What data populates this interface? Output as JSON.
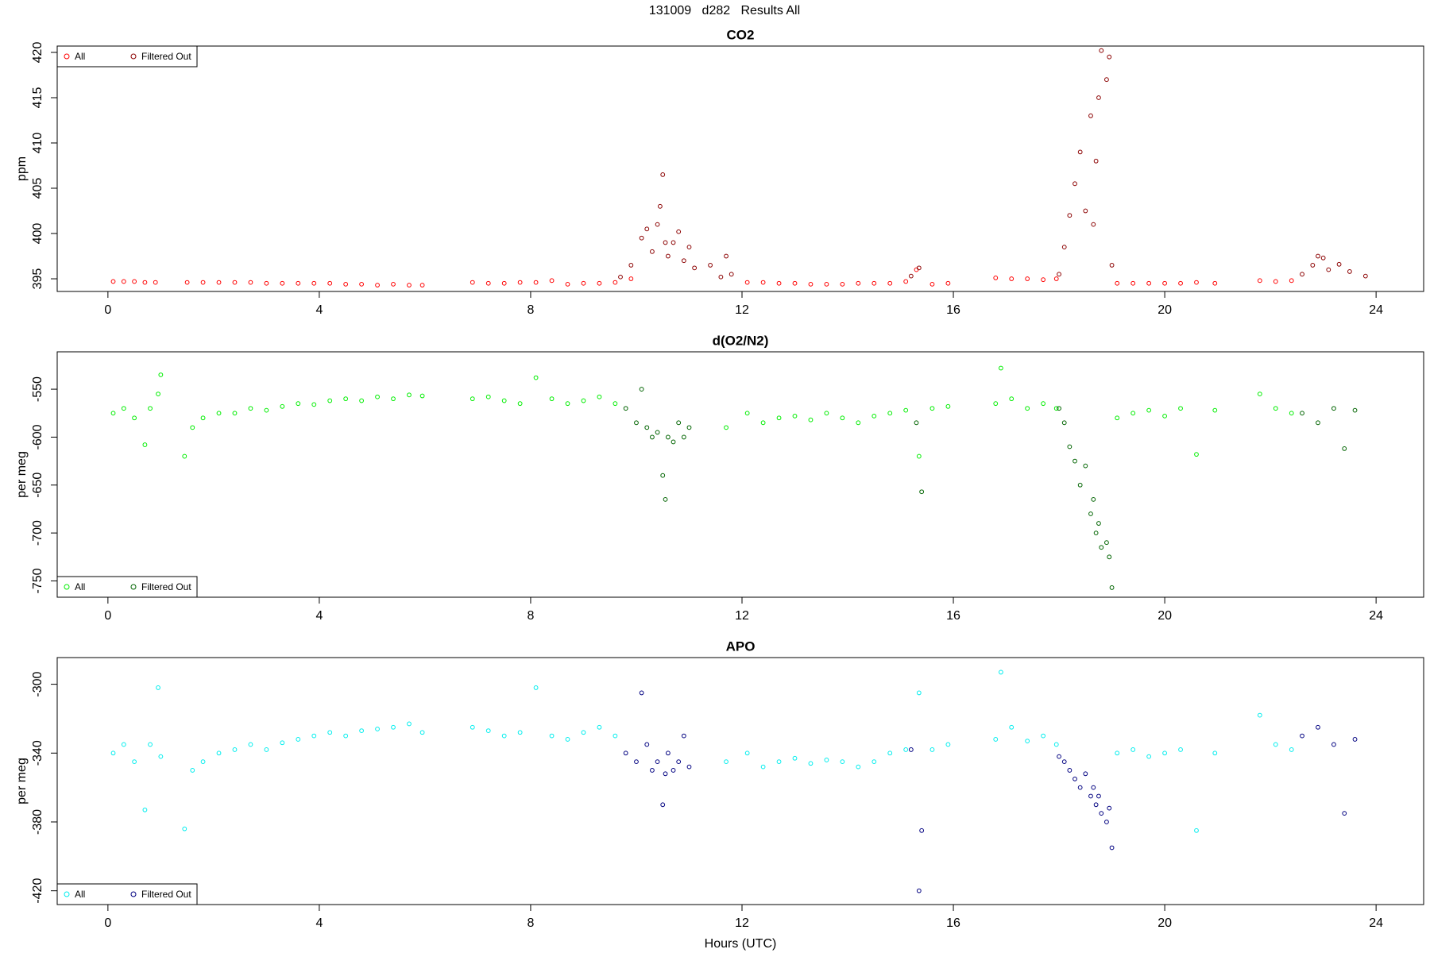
{
  "title": "131009   d282   Results All",
  "chart_data": [
    {
      "type": "scatter",
      "title": "CO2",
      "y_label": "ppm",
      "legend": "top-left",
      "xlim": [
        -0.96,
        24.9
      ],
      "xticks": [
        0,
        4,
        8,
        12,
        16,
        20,
        24
      ],
      "ylim": [
        393.6,
        420.7
      ],
      "yticks": [
        395,
        400,
        405,
        410,
        415,
        420
      ],
      "series": [
        {
          "name": "All",
          "color": "#ff0000",
          "x": [
            0.1,
            0.3,
            0.5,
            0.7,
            0.9,
            1.5,
            1.8,
            2.1,
            2.4,
            2.7,
            3.0,
            3.3,
            3.6,
            3.9,
            4.2,
            4.5,
            4.8,
            5.1,
            5.4,
            5.7,
            5.95,
            6.9,
            7.2,
            7.5,
            7.8,
            8.1,
            8.4,
            8.7,
            9.0,
            9.3,
            9.6,
            9.9,
            12.1,
            12.4,
            12.7,
            13.0,
            13.3,
            13.6,
            13.9,
            14.2,
            14.5,
            14.8,
            15.1,
            15.3,
            15.6,
            15.9,
            16.8,
            17.1,
            17.4,
            17.7,
            17.95,
            19.1,
            19.4,
            19.7,
            20.0,
            20.3,
            20.6,
            20.95,
            21.8,
            22.1,
            22.4
          ],
          "values": [
            394.7,
            394.7,
            394.7,
            394.6,
            394.6,
            394.6,
            394.6,
            394.6,
            394.6,
            394.6,
            394.5,
            394.5,
            394.5,
            394.5,
            394.5,
            394.4,
            394.4,
            394.3,
            394.4,
            394.3,
            394.3,
            394.6,
            394.5,
            394.5,
            394.6,
            394.6,
            394.8,
            394.4,
            394.5,
            394.5,
            394.6,
            395.0,
            394.6,
            394.6,
            394.5,
            394.5,
            394.4,
            394.4,
            394.4,
            394.5,
            394.5,
            394.5,
            394.7,
            396.0,
            394.4,
            394.5,
            395.1,
            395.0,
            395.0,
            394.9,
            395.0,
            394.5,
            394.5,
            394.5,
            394.5,
            394.5,
            394.6,
            394.5,
            394.8,
            394.7,
            394.8
          ]
        },
        {
          "name": "Filtered Out",
          "color": "#8b0000",
          "x": [
            9.7,
            9.9,
            10.1,
            10.2,
            10.3,
            10.4,
            10.45,
            10.5,
            10.55,
            10.6,
            10.7,
            10.8,
            10.9,
            11.0,
            11.1,
            11.4,
            11.6,
            11.7,
            11.8,
            15.2,
            15.35,
            18.0,
            18.1,
            18.2,
            18.3,
            18.4,
            18.5,
            18.6,
            18.65,
            18.7,
            18.75,
            18.8,
            18.9,
            18.95,
            19.0,
            22.6,
            22.8,
            22.9,
            23.0,
            23.1,
            23.3,
            23.5,
            23.8
          ],
          "values": [
            395.2,
            396.5,
            399.5,
            400.5,
            398,
            401,
            403,
            406.5,
            399,
            397.5,
            399,
            400.2,
            397,
            398.5,
            396.2,
            396.5,
            395.2,
            397.5,
            395.5,
            395.3,
            396.2,
            395.5,
            398.5,
            402,
            405.5,
            409,
            402.5,
            413,
            401,
            408,
            415,
            420.2,
            417,
            419.5,
            396.5,
            395.5,
            396.5,
            397.5,
            397.3,
            396.0,
            396.6,
            395.8,
            395.3
          ]
        }
      ]
    },
    {
      "type": "scatter",
      "title": "d(O2/N2)",
      "y_label": "per meg",
      "legend": "bottom-left",
      "xlim": [
        -0.96,
        24.9
      ],
      "xticks": [
        0,
        4,
        8,
        12,
        16,
        20,
        24
      ],
      "ylim": [
        -767,
        -511
      ],
      "yticks": [
        -550,
        -600,
        -650,
        -700,
        -750
      ],
      "series": [
        {
          "name": "All",
          "color": "#00ee00",
          "x": [
            0.1,
            0.3,
            0.5,
            0.7,
            0.8,
            0.95,
            1.0,
            1.45,
            1.6,
            1.8,
            2.1,
            2.4,
            2.7,
            3.0,
            3.3,
            3.6,
            3.9,
            4.2,
            4.5,
            4.8,
            5.1,
            5.4,
            5.7,
            5.95,
            6.9,
            7.2,
            7.5,
            7.8,
            8.1,
            8.4,
            8.7,
            9.0,
            9.3,
            9.6,
            11.7,
            12.1,
            12.4,
            12.7,
            13.0,
            13.3,
            13.6,
            13.9,
            14.2,
            14.5,
            14.8,
            15.1,
            15.35,
            15.6,
            15.9,
            16.8,
            16.9,
            17.1,
            17.4,
            17.7,
            17.95,
            19.1,
            19.4,
            19.7,
            20.0,
            20.3,
            20.6,
            20.95,
            21.8,
            22.1,
            22.4
          ],
          "values": [
            -575,
            -570,
            -580,
            -608,
            -570,
            -555,
            -535,
            -620,
            -590,
            -580,
            -575,
            -575,
            -570,
            -572,
            -568,
            -565,
            -566,
            -562,
            -560,
            -562,
            -558,
            -560,
            -556,
            -557,
            -560,
            -558,
            -562,
            -565,
            -538,
            -560,
            -565,
            -562,
            -558,
            -565,
            -590,
            -575,
            -585,
            -580,
            -578,
            -582,
            -575,
            -580,
            -585,
            -578,
            -575,
            -572,
            -620,
            -570,
            -568,
            -565,
            -528,
            -560,
            -570,
            -565,
            -570,
            -580,
            -575,
            -572,
            -578,
            -570,
            -618,
            -572,
            -555,
            -570,
            -575
          ]
        },
        {
          "name": "Filtered Out",
          "color": "#006400",
          "x": [
            9.8,
            10.0,
            10.1,
            10.2,
            10.3,
            10.4,
            10.5,
            10.55,
            10.6,
            10.7,
            10.8,
            10.9,
            11.0,
            15.3,
            15.4,
            18.0,
            18.1,
            18.2,
            18.3,
            18.4,
            18.5,
            18.6,
            18.65,
            18.7,
            18.75,
            18.8,
            18.9,
            18.95,
            19.0,
            22.6,
            22.9,
            23.2,
            23.4,
            23.6
          ],
          "values": [
            -570,
            -585,
            -550,
            -590,
            -600,
            -595,
            -640,
            -665,
            -600,
            -605,
            -585,
            -600,
            -590,
            -585,
            -657,
            -570,
            -585,
            -610,
            -625,
            -650,
            -630,
            -680,
            -665,
            -700,
            -690,
            -715,
            -710,
            -725,
            -757,
            -575,
            -585,
            -570,
            -612,
            -572
          ]
        }
      ]
    },
    {
      "type": "scatter",
      "title": "APO",
      "y_label": "per meg",
      "x_label": "Hours (UTC)",
      "legend": "bottom-left",
      "xlim": [
        -0.96,
        24.9
      ],
      "xticks": [
        0,
        4,
        8,
        12,
        16,
        20,
        24
      ],
      "ylim": [
        -428,
        -284.5
      ],
      "yticks": [
        -300,
        -340,
        -380,
        -420
      ],
      "series": [
        {
          "name": "All",
          "color": "#00eeee",
          "x": [
            0.1,
            0.3,
            0.5,
            0.7,
            0.8,
            0.95,
            1.0,
            1.45,
            1.6,
            1.8,
            2.1,
            2.4,
            2.7,
            3.0,
            3.3,
            3.6,
            3.9,
            4.2,
            4.5,
            4.8,
            5.1,
            5.4,
            5.7,
            5.95,
            6.9,
            7.2,
            7.5,
            7.8,
            8.1,
            8.4,
            8.7,
            9.0,
            9.3,
            9.6,
            11.7,
            12.1,
            12.4,
            12.7,
            13.0,
            13.3,
            13.6,
            13.9,
            14.2,
            14.5,
            14.8,
            15.1,
            15.35,
            15.6,
            15.9,
            16.8,
            16.9,
            17.1,
            17.4,
            17.7,
            17.95,
            19.1,
            19.4,
            19.7,
            20.0,
            20.3,
            20.6,
            20.95,
            21.8,
            22.1,
            22.4
          ],
          "values": [
            -340,
            -335,
            -345,
            -373,
            -335,
            -302,
            -342,
            -384,
            -350,
            -345,
            -340,
            -338,
            -335,
            -338,
            -334,
            -332,
            -330,
            -328,
            -330,
            -327,
            -326,
            -325,
            -323,
            -328,
            -325,
            -327,
            -330,
            -328,
            -302,
            -330,
            -332,
            -328,
            -325,
            -330,
            -345,
            -340,
            -348,
            -345,
            -343,
            -346,
            -344,
            -345,
            -348,
            -345,
            -340,
            -338,
            -305,
            -338,
            -335,
            -332,
            -293,
            -325,
            -333,
            -330,
            -335,
            -340,
            -338,
            -342,
            -340,
            -338,
            -385,
            -340,
            -318,
            -335,
            -338
          ]
        },
        {
          "name": "Filtered Out",
          "color": "#000080",
          "x": [
            9.8,
            10.0,
            10.1,
            10.2,
            10.3,
            10.4,
            10.5,
            10.55,
            10.6,
            10.7,
            10.8,
            10.9,
            11.0,
            15.2,
            15.35,
            15.4,
            18.0,
            18.1,
            18.2,
            18.3,
            18.4,
            18.5,
            18.6,
            18.65,
            18.7,
            18.75,
            18.8,
            18.9,
            18.95,
            19.0,
            22.6,
            22.9,
            23.2,
            23.4,
            23.6
          ],
          "values": [
            -340,
            -345,
            -305,
            -335,
            -350,
            -345,
            -370,
            -352,
            -340,
            -350,
            -345,
            -330,
            -348,
            -338,
            -420,
            -385,
            -342,
            -345,
            -350,
            -355,
            -360,
            -352,
            -365,
            -360,
            -370,
            -365,
            -375,
            -380,
            -372,
            -395,
            -330,
            -325,
            -335,
            -375,
            -332
          ]
        }
      ]
    }
  ]
}
